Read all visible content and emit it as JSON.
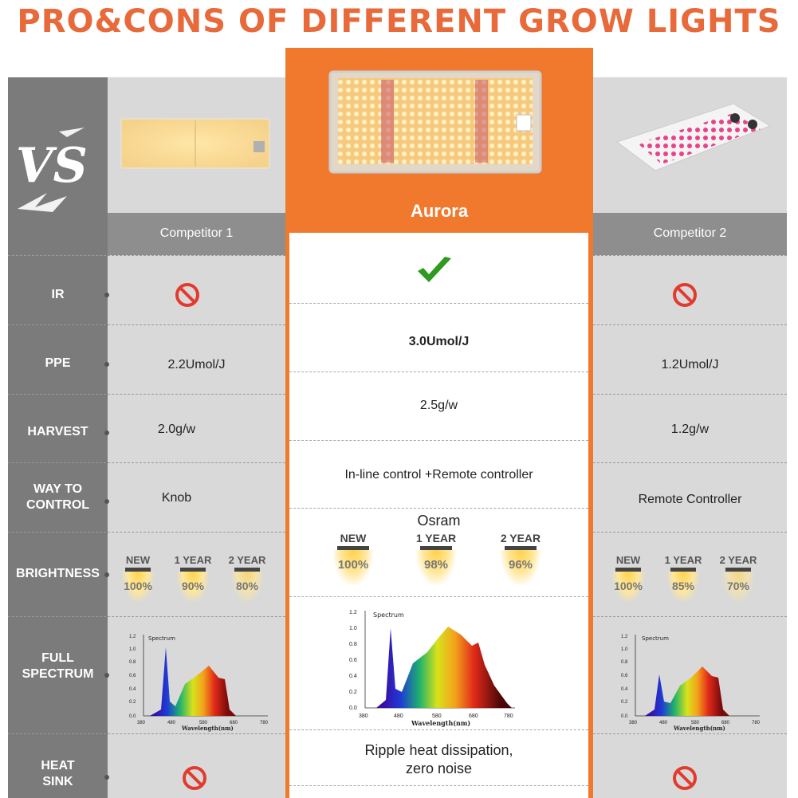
{
  "title": "PRO&CONS OF DIFFERENT GROW LIGHTS",
  "vs_label": "VS",
  "columns": {
    "competitor1": "Competitor 1",
    "aurora": "Aurora",
    "competitor2": "Competitor 2"
  },
  "rows": {
    "ir": "IR",
    "ppe": "PPE",
    "harvest": "HARVEST",
    "control_line1": "WAY TO",
    "control_line2": "CONTROL",
    "brightness": "BRIGHTNESS",
    "spectrum_line1": "FULL",
    "spectrum_line2": "SPECTRUM",
    "heat_line1": "HEAT",
    "heat_line2": "SINK"
  },
  "competitor1": {
    "ir": "no",
    "ppe": "2.2Umol/J",
    "harvest": "2.0g/w",
    "control": "Knob",
    "brightness": [
      {
        "label": "NEW",
        "pct": "100%"
      },
      {
        "label": "1 YEAR",
        "pct": "90%"
      },
      {
        "label": "2 YEAR",
        "pct": "80%"
      }
    ],
    "heat_sink": "no"
  },
  "aurora": {
    "ir": "yes",
    "ppe": "3.0Umol/J",
    "harvest": "2.5g/w",
    "control": "In-line control +Remote controller",
    "brightness_brand": "Osram",
    "brightness": [
      {
        "label": "NEW",
        "pct": "100%"
      },
      {
        "label": "1 YEAR",
        "pct": "98%"
      },
      {
        "label": "2 YEAR",
        "pct": "96%"
      }
    ],
    "heat_sink_line1": "Ripple heat dissipation,",
    "heat_sink_line2": "zero noise"
  },
  "competitor2": {
    "ir": "no",
    "ppe": "1.2Umol/J",
    "harvest": "1.2g/w",
    "control": "Remote Controller",
    "brightness": [
      {
        "label": "NEW",
        "pct": "100%"
      },
      {
        "label": "1 YEAR",
        "pct": "85%"
      },
      {
        "label": "2 YEAR",
        "pct": "70%"
      }
    ],
    "heat_sink": "no"
  },
  "spectrum_chart": {
    "title": "Spectrum",
    "xlabel": "Wavelength(nm)",
    "x_ticks": [
      "380",
      "480",
      "580",
      "680",
      "780"
    ],
    "y_ticks": [
      "0.0",
      "0.2",
      "0.4",
      "0.6",
      "0.8",
      "1.0",
      "1.2"
    ]
  },
  "colors": {
    "title": "#e8693a",
    "aurora_orange": "#f0792e",
    "label_gray": "#7b7b7b",
    "cell_gray": "#d9d9d9",
    "ban_red": "#e23b2e",
    "check_green": "#2e9a1f"
  },
  "icons": {
    "ir_no": "prohibited-icon",
    "ir_yes": "checkmark-icon",
    "heat_no": "prohibited-icon"
  }
}
